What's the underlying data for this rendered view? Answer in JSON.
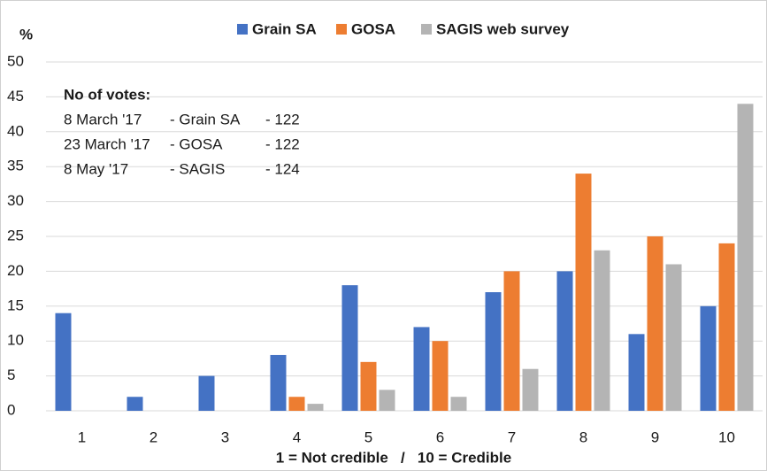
{
  "chart_data": {
    "type": "bar",
    "ylabel": "%",
    "xlabel": "1 = Not credible   /   10 = Credible",
    "categories": [
      "1",
      "2",
      "3",
      "4",
      "5",
      "6",
      "7",
      "8",
      "9",
      "10"
    ],
    "series": [
      {
        "name": "Grain SA",
        "color": "#4472c4",
        "values": [
          14,
          2,
          5,
          8,
          18,
          12,
          17,
          20,
          11,
          15
        ]
      },
      {
        "name": "GOSA",
        "color": "#ed7d31",
        "values": [
          0,
          0,
          0,
          2,
          7,
          10,
          20,
          34,
          25,
          24
        ]
      },
      {
        "name": "SAGIS web survey",
        "color": "#b4b4b4",
        "values": [
          0,
          0,
          0,
          1,
          3,
          2,
          6,
          23,
          21,
          44
        ]
      }
    ],
    "ylim": [
      0,
      50
    ],
    "yticks": [
      0,
      5,
      10,
      15,
      20,
      25,
      30,
      35,
      40,
      45,
      50
    ],
    "grid": true,
    "legend": "top",
    "annotation": {
      "title": "No of votes:",
      "rows": [
        [
          "8 March '17",
          "- Grain SA",
          "- 122"
        ],
        [
          "23 March '17",
          "- GOSA",
          "- 122"
        ],
        [
          "8 May '17",
          "- SAGIS",
          "- 124"
        ]
      ]
    }
  }
}
